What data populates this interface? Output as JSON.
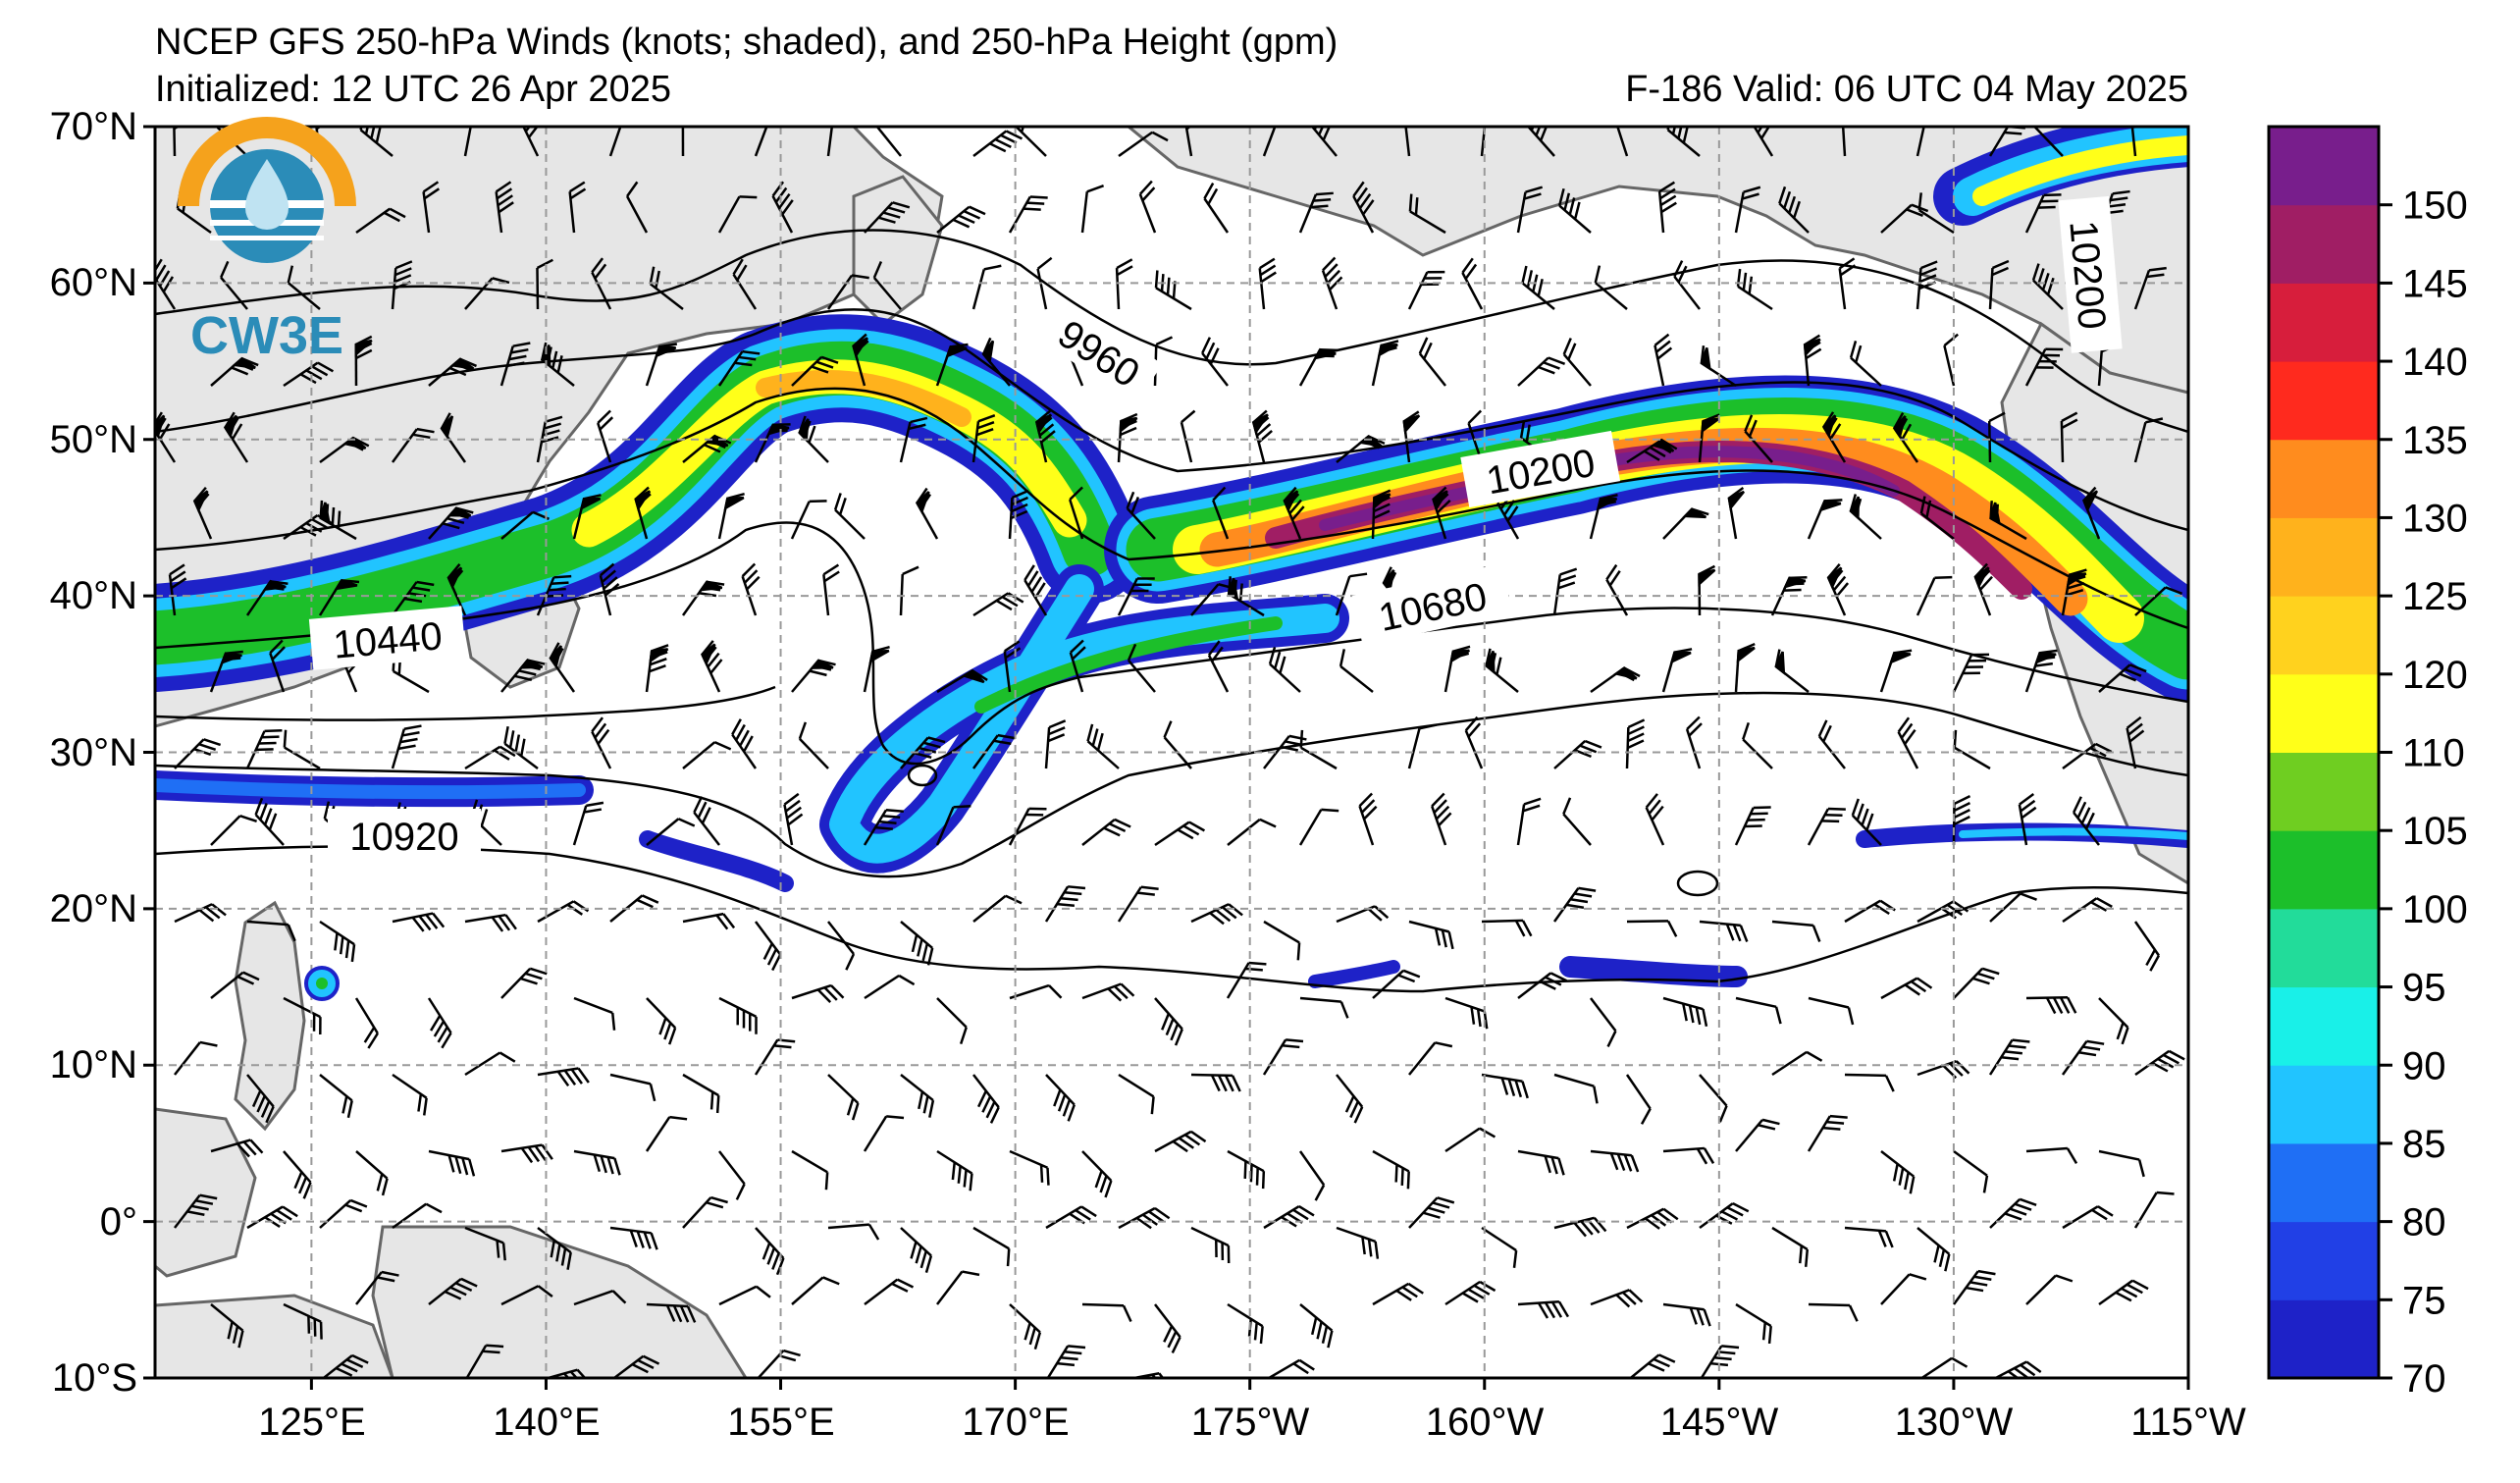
{
  "title": {
    "line1": "NCEP GFS 250-hPa Winds (knots; shaded), and 250-hPa Height (gpm)",
    "line2": "Initialized: 12 UTC 26 Apr 2025",
    "line3": "F-186  Valid: 06 UTC 04 May 2025"
  },
  "logo": {
    "text": "CW3E",
    "icon": "cw3e-logo-icon"
  },
  "axes": {
    "lat_labels": [
      "70°N",
      "60°N",
      "50°N",
      "40°N",
      "30°N",
      "20°N",
      "10°N",
      "0°",
      "10°S"
    ],
    "lon_labels": [
      "125°E",
      "140°E",
      "155°E",
      "170°E",
      "175°W",
      "160°W",
      "145°W",
      "130°W",
      "115°W"
    ],
    "lat_range": [
      -10,
      70
    ],
    "lon_ticks_deg": [
      125,
      140,
      155,
      170,
      185,
      200,
      215,
      230,
      245
    ]
  },
  "contours": {
    "labels": [
      "9960",
      "10200",
      "10440",
      "10680",
      "10920",
      "10200"
    ]
  },
  "colorbar": {
    "labels": [
      "70",
      "75",
      "80",
      "85",
      "90",
      "95",
      "100",
      "105",
      "110",
      "120",
      "125",
      "130",
      "135",
      "140",
      "145",
      "150"
    ],
    "colors": [
      "#1e22c8",
      "#2140e6",
      "#1f6ff5",
      "#21c4ff",
      "#19f0e8",
      "#22dc9a",
      "#1cbf2a",
      "#6fce21",
      "#ffff19",
      "#ffd21e",
      "#ffb21c",
      "#ff8c1e",
      "#ff2a1e",
      "#d71e3c",
      "#a01e64",
      "#781e8c"
    ]
  },
  "colors": {
    "land": "#e6e6e6",
    "coast": "#666666",
    "grid": "#999999"
  }
}
